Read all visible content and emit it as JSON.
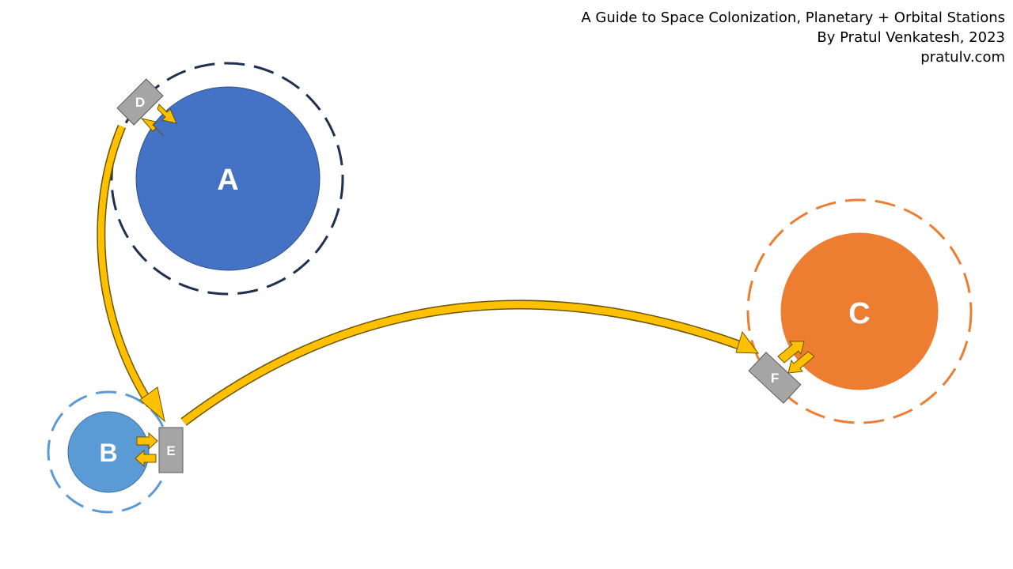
{
  "credits": {
    "title": "A Guide to Space Colonization,  Planetary + Orbital Stations",
    "author": "By Pratul Venkatesh, 2023",
    "website": "pratulv.com"
  },
  "planets": {
    "a": {
      "label": "A",
      "color": "#4472C4",
      "orbit_color": "#1F3050"
    },
    "b": {
      "label": "B",
      "color": "#5B9BD5",
      "orbit_color": "#5B9BD5"
    },
    "c": {
      "label": "C",
      "color": "#ED7D31",
      "orbit_color": "#ED7D31"
    }
  },
  "stations": {
    "d": {
      "label": "D",
      "color": "#A5A5A5"
    },
    "e": {
      "label": "E",
      "color": "#A5A5A5"
    },
    "f": {
      "label": "F",
      "color": "#A5A5A5"
    }
  },
  "routes": [
    {
      "from": "D",
      "to": "E"
    },
    {
      "from": "E",
      "to": "F"
    }
  ],
  "arrow_color": "#FFC000"
}
